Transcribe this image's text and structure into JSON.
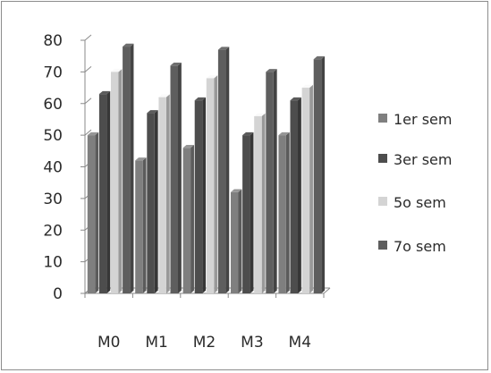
{
  "chart_data": {
    "type": "bar",
    "categories": [
      "M0",
      "M1",
      "M2",
      "M3",
      "M4"
    ],
    "series": [
      {
        "name": "1er sem",
        "values": [
          50,
          42,
          46,
          32,
          50
        ],
        "color": "#7f7f7f"
      },
      {
        "name": "3er sem",
        "values": [
          63,
          57,
          61,
          50,
          61
        ],
        "color": "#4d4d4d"
      },
      {
        "name": "5o sem",
        "values": [
          70,
          62,
          68,
          56,
          65
        ],
        "color": "#d4d4d4"
      },
      {
        "name": "7o sem",
        "values": [
          78,
          72,
          77,
          70,
          74
        ],
        "color": "#5e5e5e"
      }
    ],
    "ylim": [
      0,
      80
    ],
    "yticks": [
      0,
      10,
      20,
      30,
      40,
      50,
      60,
      70,
      80
    ],
    "grid": false,
    "legend_position": "right",
    "style": "3d-bar"
  }
}
